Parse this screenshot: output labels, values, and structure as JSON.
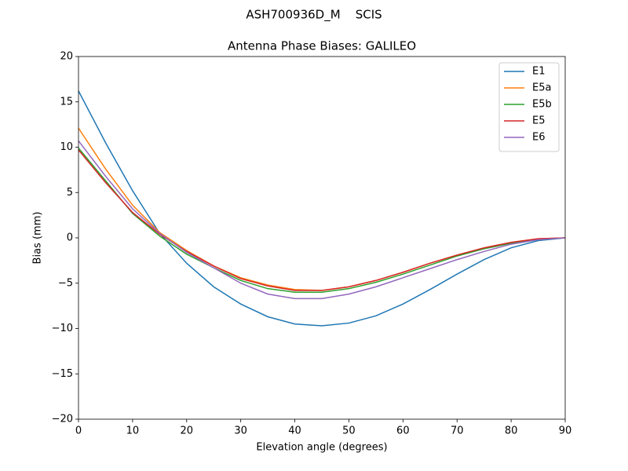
{
  "chart_data": {
    "type": "line",
    "suptitle": "ASH700936D_M    SCIS",
    "title": "Antenna Phase Biases: GALILEO",
    "x_label": "Elevation angle (degrees)",
    "y_label": "Bias (mm)",
    "x": [
      0,
      5,
      10,
      15,
      20,
      25,
      30,
      35,
      40,
      45,
      50,
      55,
      60,
      65,
      70,
      75,
      80,
      85,
      90
    ],
    "series": [
      {
        "name": "E1",
        "color": "#1f77b4",
        "values": [
          16.2,
          10.5,
          5.2,
          0.5,
          -2.8,
          -5.4,
          -7.3,
          -8.7,
          -9.5,
          -9.7,
          -9.4,
          -8.6,
          -7.3,
          -5.7,
          -4.0,
          -2.4,
          -1.1,
          -0.3,
          0
        ]
      },
      {
        "name": "E5a",
        "color": "#ff7f0e",
        "values": [
          12.1,
          7.6,
          3.6,
          0.6,
          -1.4,
          -3.1,
          -4.4,
          -5.2,
          -5.7,
          -5.8,
          -5.4,
          -4.7,
          -3.8,
          -2.8,
          -1.9,
          -1.1,
          -0.5,
          -0.1,
          0
        ]
      },
      {
        "name": "E5b",
        "color": "#2ca02c",
        "values": [
          9.9,
          6.3,
          2.7,
          0.2,
          -1.8,
          -3.3,
          -4.7,
          -5.6,
          -6.0,
          -6.0,
          -5.6,
          -4.9,
          -4.0,
          -3.0,
          -2.0,
          -1.2,
          -0.6,
          -0.2,
          0
        ]
      },
      {
        "name": "E5",
        "color": "#d62728",
        "values": [
          9.7,
          6.1,
          2.8,
          0.4,
          -1.5,
          -3.1,
          -4.5,
          -5.3,
          -5.8,
          -5.8,
          -5.4,
          -4.7,
          -3.8,
          -2.8,
          -1.9,
          -1.1,
          -0.5,
          -0.1,
          0
        ]
      },
      {
        "name": "E6",
        "color": "#9467bd",
        "values": [
          10.7,
          6.8,
          3.2,
          0.5,
          -1.6,
          -3.3,
          -5.0,
          -6.2,
          -6.7,
          -6.7,
          -6.2,
          -5.4,
          -4.4,
          -3.4,
          -2.4,
          -1.5,
          -0.7,
          -0.2,
          0
        ]
      }
    ],
    "xlim": [
      0,
      90
    ],
    "ylim": [
      -20,
      20
    ],
    "xticks": [
      0,
      10,
      20,
      30,
      40,
      50,
      60,
      70,
      80,
      90
    ],
    "yticks": [
      {
        "value": -20,
        "label": "−20"
      },
      {
        "value": -15,
        "label": "−15"
      },
      {
        "value": -10,
        "label": "−10"
      },
      {
        "value": -5,
        "label": "−5"
      },
      0,
      5,
      10,
      15,
      20
    ],
    "grid": false,
    "legend": "upper right"
  }
}
